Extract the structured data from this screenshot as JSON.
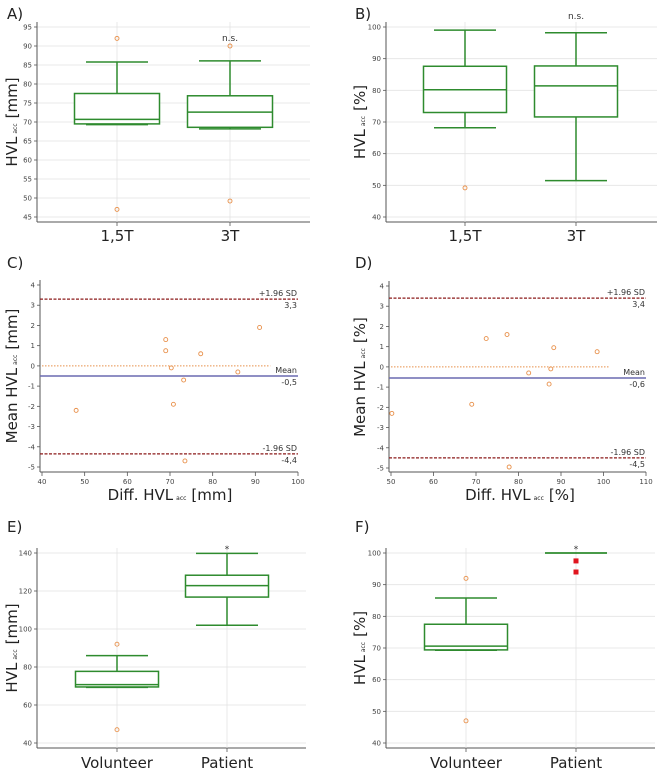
{
  "colors": {
    "box": "#2e8b2e",
    "outlier": "#e8904a",
    "outlier_filled": "#e0141e",
    "grid": "#e3e3e3",
    "axis": "#555555",
    "sd_line": "#8b1a1a",
    "mean_line": "#6a6ab0",
    "zero_line": "#e8904a"
  },
  "chart_data": [
    {
      "panel": "A)",
      "type": "box",
      "ylabel": {
        "main": "HVL",
        "sub": "acc",
        "unit": "[mm]"
      },
      "ylim": [
        45,
        95
      ],
      "yticks": [
        45,
        50,
        55,
        60,
        65,
        70,
        75,
        80,
        85,
        90,
        95
      ],
      "categories": [
        "1,5T",
        "3T"
      ],
      "boxes": [
        {
          "whisker_low": 69.3,
          "q1": 69.5,
          "median": 70.7,
          "q3": 77.5,
          "whisker_high": 85.8,
          "outliers": [
            92,
            47
          ]
        },
        {
          "whisker_low": 68.2,
          "q1": 68.6,
          "median": 72.6,
          "q3": 76.9,
          "whisker_high": 86.1,
          "outliers": [
            90,
            49.2
          ]
        }
      ],
      "annotations": [
        {
          "category": 1,
          "text": "n.s."
        }
      ]
    },
    {
      "panel": "B)",
      "type": "box",
      "ylabel": {
        "main": "HVL",
        "sub": "acc",
        "unit": "[%]"
      },
      "ylim": [
        40,
        100
      ],
      "yticks": [
        40,
        50,
        60,
        70,
        80,
        90,
        100
      ],
      "categories": [
        "1,5T",
        "3T"
      ],
      "boxes": [
        {
          "whisker_low": 68.2,
          "q1": 73.0,
          "median": 80.2,
          "q3": 87.6,
          "whisker_high": 99.0,
          "outliers": [
            49.2
          ]
        },
        {
          "whisker_low": 51.5,
          "q1": 71.6,
          "median": 81.4,
          "q3": 87.7,
          "whisker_high": 98.2,
          "outliers": []
        }
      ],
      "annotations": [
        {
          "category": 1,
          "text": "n.s."
        }
      ]
    },
    {
      "panel": "C)",
      "type": "scatter",
      "xlabel": {
        "main": "Diff. HVL",
        "sub": "acc",
        "unit": "[mm]"
      },
      "ylabel": {
        "main": "Mean HVL",
        "sub": "acc",
        "unit": "[mm]"
      },
      "xlim": [
        40,
        100
      ],
      "xticks": [
        40,
        50,
        60,
        70,
        80,
        90,
        100
      ],
      "ylim": [
        -5,
        4
      ],
      "yticks": [
        -5,
        -4,
        -3,
        -2,
        -1,
        0,
        1,
        2,
        3,
        4
      ],
      "points": [
        [
          48,
          -2.2
        ],
        [
          69,
          1.3
        ],
        [
          69,
          0.75
        ],
        [
          70.3,
          -0.1
        ],
        [
          70.8,
          -1.9
        ],
        [
          73.2,
          -0.7
        ],
        [
          73.5,
          -4.7
        ],
        [
          77.2,
          0.6
        ],
        [
          85.9,
          -0.3
        ],
        [
          91,
          1.9
        ]
      ],
      "zero_line_end": 93.5,
      "lines": [
        {
          "kind": "sd",
          "value": 3.3,
          "label": "+1.96 SD",
          "value_label": "3,3"
        },
        {
          "kind": "mean",
          "value": -0.5,
          "label": "Mean",
          "value_label": "-0,5"
        },
        {
          "kind": "sd",
          "value": -4.35,
          "label": "-1.96 SD",
          "value_label": "-4,4"
        }
      ]
    },
    {
      "panel": "D)",
      "type": "scatter",
      "xlabel": {
        "main": "Diff. HVL",
        "sub": "acc",
        "unit": "[%]"
      },
      "ylabel": {
        "main": "Mean HVL",
        "sub": "acc",
        "unit": "[%]"
      },
      "xlim": [
        50,
        110
      ],
      "xticks": [
        50,
        60,
        70,
        80,
        90,
        100,
        110
      ],
      "ylim": [
        -5,
        4
      ],
      "yticks": [
        -5,
        -4,
        -3,
        -2,
        -1,
        0,
        1,
        2,
        3,
        4
      ],
      "points": [
        [
          50.2,
          -2.3
        ],
        [
          69,
          -1.85
        ],
        [
          72.4,
          1.4
        ],
        [
          77.3,
          1.6
        ],
        [
          77.8,
          -4.95
        ],
        [
          82.4,
          -0.3
        ],
        [
          87.2,
          -0.85
        ],
        [
          87.6,
          -0.1
        ],
        [
          88.3,
          0.95
        ],
        [
          98.5,
          0.75
        ]
      ],
      "zero_line_end": 101.5,
      "lines": [
        {
          "kind": "sd",
          "value": 3.4,
          "label": "+1.96 SD",
          "value_label": "3,4"
        },
        {
          "kind": "mean",
          "value": -0.55,
          "label": "Mean",
          "value_label": "-0,6"
        },
        {
          "kind": "sd",
          "value": -4.5,
          "label": "-1.96 SD",
          "value_label": "-4,5"
        }
      ]
    },
    {
      "panel": "E)",
      "type": "box",
      "ylabel": {
        "main": "HVL",
        "sub": "acc",
        "unit": "[mm]"
      },
      "ylim": [
        40,
        140
      ],
      "yticks": [
        40,
        60,
        80,
        100,
        120,
        140
      ],
      "categories": [
        "Volunteer",
        "Patient"
      ],
      "boxes": [
        {
          "whisker_low": 69.3,
          "q1": 69.5,
          "median": 70.7,
          "q3": 77.7,
          "whisker_high": 86.0,
          "outliers": [
            92,
            47
          ]
        },
        {
          "whisker_low": 102.0,
          "q1": 116.8,
          "median": 122.8,
          "q3": 128.3,
          "whisker_high": 139.8,
          "outliers": []
        }
      ],
      "annotations": [
        {
          "category": 1,
          "text": "*"
        }
      ]
    },
    {
      "panel": "F)",
      "type": "box",
      "ylabel": {
        "main": "HVL",
        "sub": "acc",
        "unit": "[%]"
      },
      "ylim": [
        40,
        100
      ],
      "yticks": [
        40,
        50,
        60,
        70,
        80,
        90,
        100
      ],
      "categories": [
        "Volunteer",
        "Patient"
      ],
      "boxes": [
        {
          "whisker_low": 69.3,
          "q1": 69.4,
          "median": 70.6,
          "q3": 77.5,
          "whisker_high": 85.8,
          "outliers": [
            92,
            47
          ]
        },
        {
          "whisker_low": 100,
          "q1": 100,
          "median": 100,
          "q3": 100,
          "whisker_high": 100,
          "outliers": [],
          "far_outliers": [
            97.5,
            94
          ]
        }
      ],
      "annotations": [
        {
          "category": 1,
          "text": "*"
        }
      ]
    }
  ]
}
